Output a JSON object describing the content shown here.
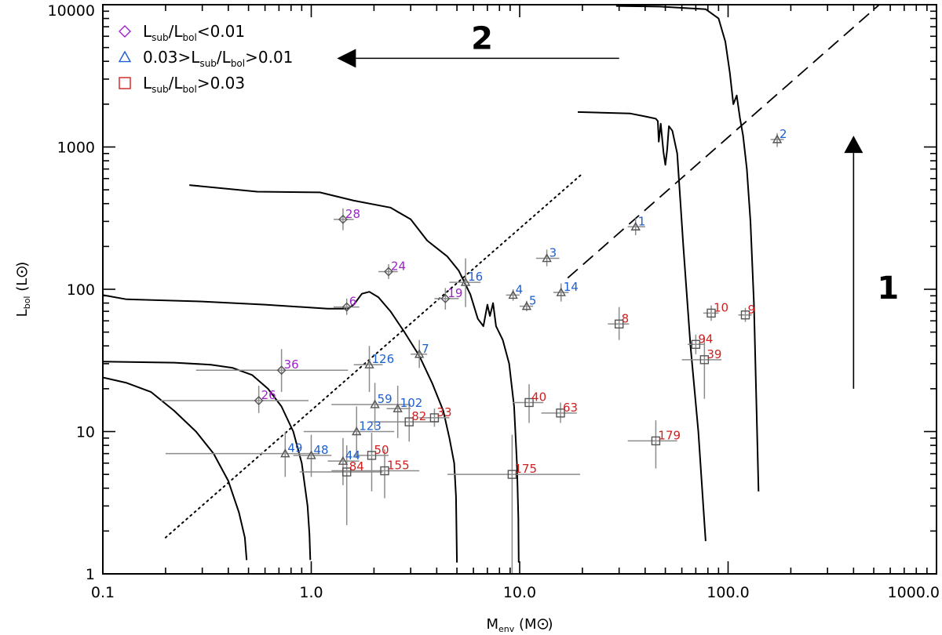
{
  "chart_data": {
    "type": "scatter",
    "title": "",
    "xscale": "log",
    "yscale": "log",
    "xlim": [
      0.1,
      1000
    ],
    "ylim": [
      1,
      10000
    ],
    "x_ticks": [
      0.1,
      1,
      10,
      100,
      1000
    ],
    "x_tick_labels": [
      "0.1",
      "1.0",
      "10.0",
      "100.0",
      "1000.0"
    ],
    "y_ticks": [
      1,
      10,
      100,
      1000,
      10000
    ],
    "y_tick_labels": [
      "1",
      "10",
      "100",
      "1000",
      "10000"
    ],
    "xlabel": {
      "main": "M",
      "sub": "env",
      "rest": " (M",
      "end": ")"
    },
    "ylabel": {
      "main": "L",
      "sub": "bol",
      "rest": " (L",
      "end": ")"
    },
    "legend": {
      "placement": "top-left",
      "entries": [
        {
          "marker": "diamond",
          "color": "#a020c8",
          "parts": [
            "L",
            "sub",
            "/L",
            "bol",
            "<0.01"
          ]
        },
        {
          "marker": "triangle",
          "color": "#1e5fd0",
          "parts": [
            "0.03>L",
            "sub",
            "/L",
            "bol",
            ">0.01"
          ]
        },
        {
          "marker": "square",
          "color": "#d02020",
          "parts": [
            "L",
            "sub",
            "/L",
            "bol",
            ">0.03"
          ]
        }
      ]
    },
    "colors": {
      "diamond": "#a020c8",
      "triangle": "#1e5fd0",
      "square": "#d02020",
      "errorbar": "#8c8c8c"
    },
    "points": [
      {
        "id": "28",
        "cls": "diamond",
        "x": 1.42,
        "y": 310,
        "xerr": [
          1.28,
          1.6
        ],
        "yerr": [
          260,
          370
        ]
      },
      {
        "id": "24",
        "cls": "diamond",
        "x": 2.35,
        "y": 133,
        "xerr": [
          2.1,
          2.6
        ],
        "yerr": [
          118,
          150
        ]
      },
      {
        "id": "6",
        "cls": "diamond",
        "x": 1.48,
        "y": 75,
        "xerr": [
          1.28,
          1.7
        ],
        "yerr": [
          66,
          86
        ]
      },
      {
        "id": "19",
        "cls": "diamond",
        "x": 4.4,
        "y": 86,
        "xerr": [
          3.9,
          5.1
        ],
        "yerr": [
          72,
          102
        ]
      },
      {
        "id": "36",
        "cls": "diamond",
        "x": 0.72,
        "y": 27,
        "xerr": [
          0.28,
          1.5
        ],
        "yerr": [
          19,
          38
        ]
      },
      {
        "id": "26",
        "cls": "diamond",
        "x": 0.56,
        "y": 16.5,
        "xerr": [
          0.19,
          0.97
        ],
        "yerr": [
          13.5,
          21
        ]
      },
      {
        "id": "2",
        "cls": "triangle",
        "x": 172,
        "y": 1130,
        "xerr": [
          160,
          185
        ],
        "yerr": [
          1000,
          1250
        ]
      },
      {
        "id": "1",
        "cls": "triangle",
        "x": 36,
        "y": 275,
        "xerr": [
          33,
          40
        ],
        "yerr": [
          240,
          315
        ]
      },
      {
        "id": "3",
        "cls": "triangle",
        "x": 13.5,
        "y": 165,
        "xerr": [
          12,
          15.5
        ],
        "yerr": [
          145,
          190
        ]
      },
      {
        "id": "16",
        "cls": "triangle",
        "x": 5.5,
        "y": 112,
        "xerr": [
          4.6,
          6.5
        ],
        "yerr": [
          75,
          165
        ]
      },
      {
        "id": "4",
        "cls": "triangle",
        "x": 9.3,
        "y": 91,
        "xerr": [
          8.6,
          10.0
        ],
        "yerr": [
          83,
          100
        ]
      },
      {
        "id": "5",
        "cls": "triangle",
        "x": 10.8,
        "y": 76,
        "xerr": [
          10.0,
          11.6
        ],
        "yerr": [
          70,
          83
        ]
      },
      {
        "id": "14",
        "cls": "triangle",
        "x": 15.8,
        "y": 95,
        "xerr": [
          14.5,
          17.2
        ],
        "yerr": [
          82,
          110
        ]
      },
      {
        "id": "7",
        "cls": "triangle",
        "x": 3.3,
        "y": 35,
        "xerr": [
          3.0,
          3.6
        ],
        "yerr": [
          28,
          44
        ]
      },
      {
        "id": "126",
        "cls": "triangle",
        "x": 1.9,
        "y": 29.5,
        "xerr": [
          1.6,
          2.2
        ],
        "yerr": [
          19,
          40
        ]
      },
      {
        "id": "59",
        "cls": "triangle",
        "x": 2.02,
        "y": 15.5,
        "xerr": [
          1.25,
          3.0
        ],
        "yerr": [
          10.5,
          22
        ]
      },
      {
        "id": "102",
        "cls": "triangle",
        "x": 2.6,
        "y": 14.5,
        "xerr": [
          2.3,
          3.0
        ],
        "yerr": [
          9,
          21
        ]
      },
      {
        "id": "123",
        "cls": "triangle",
        "x": 1.65,
        "y": 10,
        "xerr": [
          0.92,
          2.5
        ],
        "yerr": [
          6.5,
          15
        ]
      },
      {
        "id": "49",
        "cls": "triangle",
        "x": 0.75,
        "y": 7,
        "xerr": [
          0.2,
          1.1
        ],
        "yerr": [
          4.8,
          10
        ]
      },
      {
        "id": "48",
        "cls": "triangle",
        "x": 1.0,
        "y": 6.8,
        "xerr": [
          0.82,
          1.25
        ],
        "yerr": [
          4.8,
          9.5
        ]
      },
      {
        "id": "44",
        "cls": "triangle",
        "x": 1.42,
        "y": 6.2,
        "xerr": [
          1.2,
          1.7
        ],
        "yerr": [
          4.2,
          9.0
        ]
      },
      {
        "id": "10",
        "cls": "square",
        "x": 83,
        "y": 68,
        "xerr": [
          76,
          90
        ],
        "yerr": [
          60,
          77
        ]
      },
      {
        "id": "9",
        "cls": "square",
        "x": 121,
        "y": 66,
        "xerr": [
          112,
          130
        ],
        "yerr": [
          59,
          74
        ]
      },
      {
        "id": "8",
        "cls": "square",
        "x": 30,
        "y": 57,
        "xerr": [
          26.5,
          33.5
        ],
        "yerr": [
          44,
          75
        ]
      },
      {
        "id": "94",
        "cls": "square",
        "x": 70,
        "y": 41,
        "xerr": [
          64,
          77
        ],
        "yerr": [
          35,
          48
        ]
      },
      {
        "id": "39",
        "cls": "square",
        "x": 77,
        "y": 32,
        "xerr": [
          60,
          93
        ],
        "yerr": [
          17,
          46
        ]
      },
      {
        "id": "40",
        "cls": "square",
        "x": 11.1,
        "y": 16,
        "xerr": [
          9.3,
          13
        ],
        "yerr": [
          11.5,
          21.5
        ]
      },
      {
        "id": "63",
        "cls": "square",
        "x": 15.7,
        "y": 13.5,
        "xerr": [
          12.7,
          18.8
        ],
        "yerr": [
          11.5,
          16
        ]
      },
      {
        "id": "33",
        "cls": "square",
        "x": 3.9,
        "y": 12.5,
        "xerr": [
          3.3,
          4.6
        ],
        "yerr": [
          10.8,
          14.5
        ]
      },
      {
        "id": "82",
        "cls": "square",
        "x": 2.95,
        "y": 11.7,
        "xerr": [
          1.9,
          4.1
        ],
        "yerr": [
          8.5,
          16
        ]
      },
      {
        "id": "50",
        "cls": "square",
        "x": 1.95,
        "y": 6.8,
        "xerr": [
          1.6,
          2.35
        ],
        "yerr": [
          3.8,
          9.8
        ]
      },
      {
        "id": "155",
        "cls": "square",
        "x": 2.25,
        "y": 5.3,
        "xerr": [
          1.25,
          3.3
        ],
        "yerr": [
          3.4,
          7.5
        ]
      },
      {
        "id": "84",
        "cls": "square",
        "x": 1.48,
        "y": 5.2,
        "xerr": [
          0.88,
          2.2
        ],
        "yerr": [
          2.2,
          8
        ]
      },
      {
        "id": "175",
        "cls": "square",
        "x": 9.2,
        "y": 5.0,
        "xerr": [
          4.5,
          19.5
        ],
        "yerr": [
          1.0,
          9.5
        ]
      },
      {
        "id": "179",
        "cls": "square",
        "x": 45,
        "y": 8.6,
        "xerr": [
          33,
          57
        ],
        "yerr": [
          5.5,
          12
        ]
      }
    ],
    "curves": [
      {
        "name": "track-0.5",
        "style": "solid",
        "points": [
          [
            0.1,
            24
          ],
          [
            0.13,
            22
          ],
          [
            0.17,
            19
          ],
          [
            0.22,
            14
          ],
          [
            0.28,
            10
          ],
          [
            0.34,
            7
          ],
          [
            0.4,
            4.5
          ],
          [
            0.45,
            2.7
          ],
          [
            0.48,
            1.8
          ],
          [
            0.49,
            1.25
          ]
        ]
      },
      {
        "name": "track-1",
        "style": "solid",
        "points": [
          [
            0.1,
            31
          ],
          [
            0.22,
            30.5
          ],
          [
            0.33,
            29.5
          ],
          [
            0.42,
            28
          ],
          [
            0.52,
            25
          ],
          [
            0.62,
            20
          ],
          [
            0.72,
            15
          ],
          [
            0.82,
            10
          ],
          [
            0.9,
            6
          ],
          [
            0.96,
            3
          ],
          [
            0.98,
            1.9
          ],
          [
            0.99,
            1.25
          ]
        ]
      },
      {
        "name": "track-5",
        "style": "solid",
        "points": [
          [
            0.1,
            91
          ],
          [
            0.13,
            85
          ],
          [
            0.3,
            82
          ],
          [
            0.6,
            78
          ],
          [
            1.2,
            73
          ],
          [
            1.5,
            73
          ],
          [
            1.6,
            78
          ],
          [
            1.75,
            93
          ],
          [
            1.9,
            96
          ],
          [
            2.1,
            88
          ],
          [
            2.4,
            70
          ],
          [
            2.8,
            50
          ],
          [
            3.3,
            34
          ],
          [
            3.8,
            22
          ],
          [
            4.3,
            14
          ],
          [
            4.6,
            9
          ],
          [
            4.85,
            6
          ],
          [
            4.95,
            3.5
          ],
          [
            5.0,
            1.2
          ]
        ]
      },
      {
        "name": "track-10",
        "style": "solid",
        "points": [
          [
            0.26,
            540
          ],
          [
            0.55,
            485
          ],
          [
            1.1,
            480
          ],
          [
            1.6,
            420
          ],
          [
            2.4,
            375
          ],
          [
            3.0,
            310
          ],
          [
            3.6,
            220
          ],
          [
            4.5,
            170
          ],
          [
            5.1,
            135
          ],
          [
            5.8,
            92
          ],
          [
            6.3,
            62
          ],
          [
            6.7,
            55
          ],
          [
            7.0,
            78
          ],
          [
            7.2,
            65
          ],
          [
            7.45,
            80
          ],
          [
            7.7,
            55
          ],
          [
            8.3,
            44
          ],
          [
            8.9,
            30
          ],
          [
            9.4,
            15
          ],
          [
            9.7,
            6
          ],
          [
            9.85,
            2.5
          ],
          [
            9.9,
            1.2
          ]
        ]
      },
      {
        "name": "track-50",
        "style": "solid",
        "points": [
          [
            19,
            1760
          ],
          [
            34,
            1720
          ],
          [
            40,
            1640
          ],
          [
            45,
            1580
          ],
          [
            46,
            1520
          ],
          [
            46.5,
            1090
          ],
          [
            47.5,
            1460
          ],
          [
            49,
            920
          ],
          [
            50,
            750
          ],
          [
            51,
            960
          ],
          [
            52,
            1400
          ],
          [
            54,
            1300
          ],
          [
            57,
            900
          ],
          [
            61,
            200
          ],
          [
            66,
            40
          ],
          [
            72,
            10
          ],
          [
            76,
            3
          ],
          [
            78,
            1.7
          ]
        ]
      },
      {
        "name": "track-100",
        "style": "solid",
        "points": [
          [
            29,
            9800
          ],
          [
            47,
            9700
          ],
          [
            78,
            9300
          ],
          [
            90,
            8000
          ],
          [
            97,
            5500
          ],
          [
            102,
            3300
          ],
          [
            106,
            2000
          ],
          [
            110,
            2300
          ],
          [
            114,
            1600
          ],
          [
            118,
            1200
          ],
          [
            123,
            700
          ],
          [
            128,
            300
          ],
          [
            133,
            80
          ],
          [
            137,
            14
          ],
          [
            140,
            3.8
          ]
        ]
      },
      {
        "name": "dashed-line",
        "style": "dashed",
        "points": [
          [
            17,
            120
          ],
          [
            560,
            10700
          ]
        ]
      },
      {
        "name": "dotted-line",
        "style": "dotted",
        "points": [
          [
            0.2,
            1.8
          ],
          [
            20,
            650
          ]
        ]
      }
    ],
    "annotations": [
      {
        "name": "arrow-1",
        "text": "1",
        "from": [
          400,
          20
        ],
        "to": [
          400,
          1200
        ]
      },
      {
        "name": "arrow-2",
        "text": "2",
        "from": [
          30,
          4200
        ],
        "to": [
          1.33,
          4200
        ]
      }
    ]
  }
}
